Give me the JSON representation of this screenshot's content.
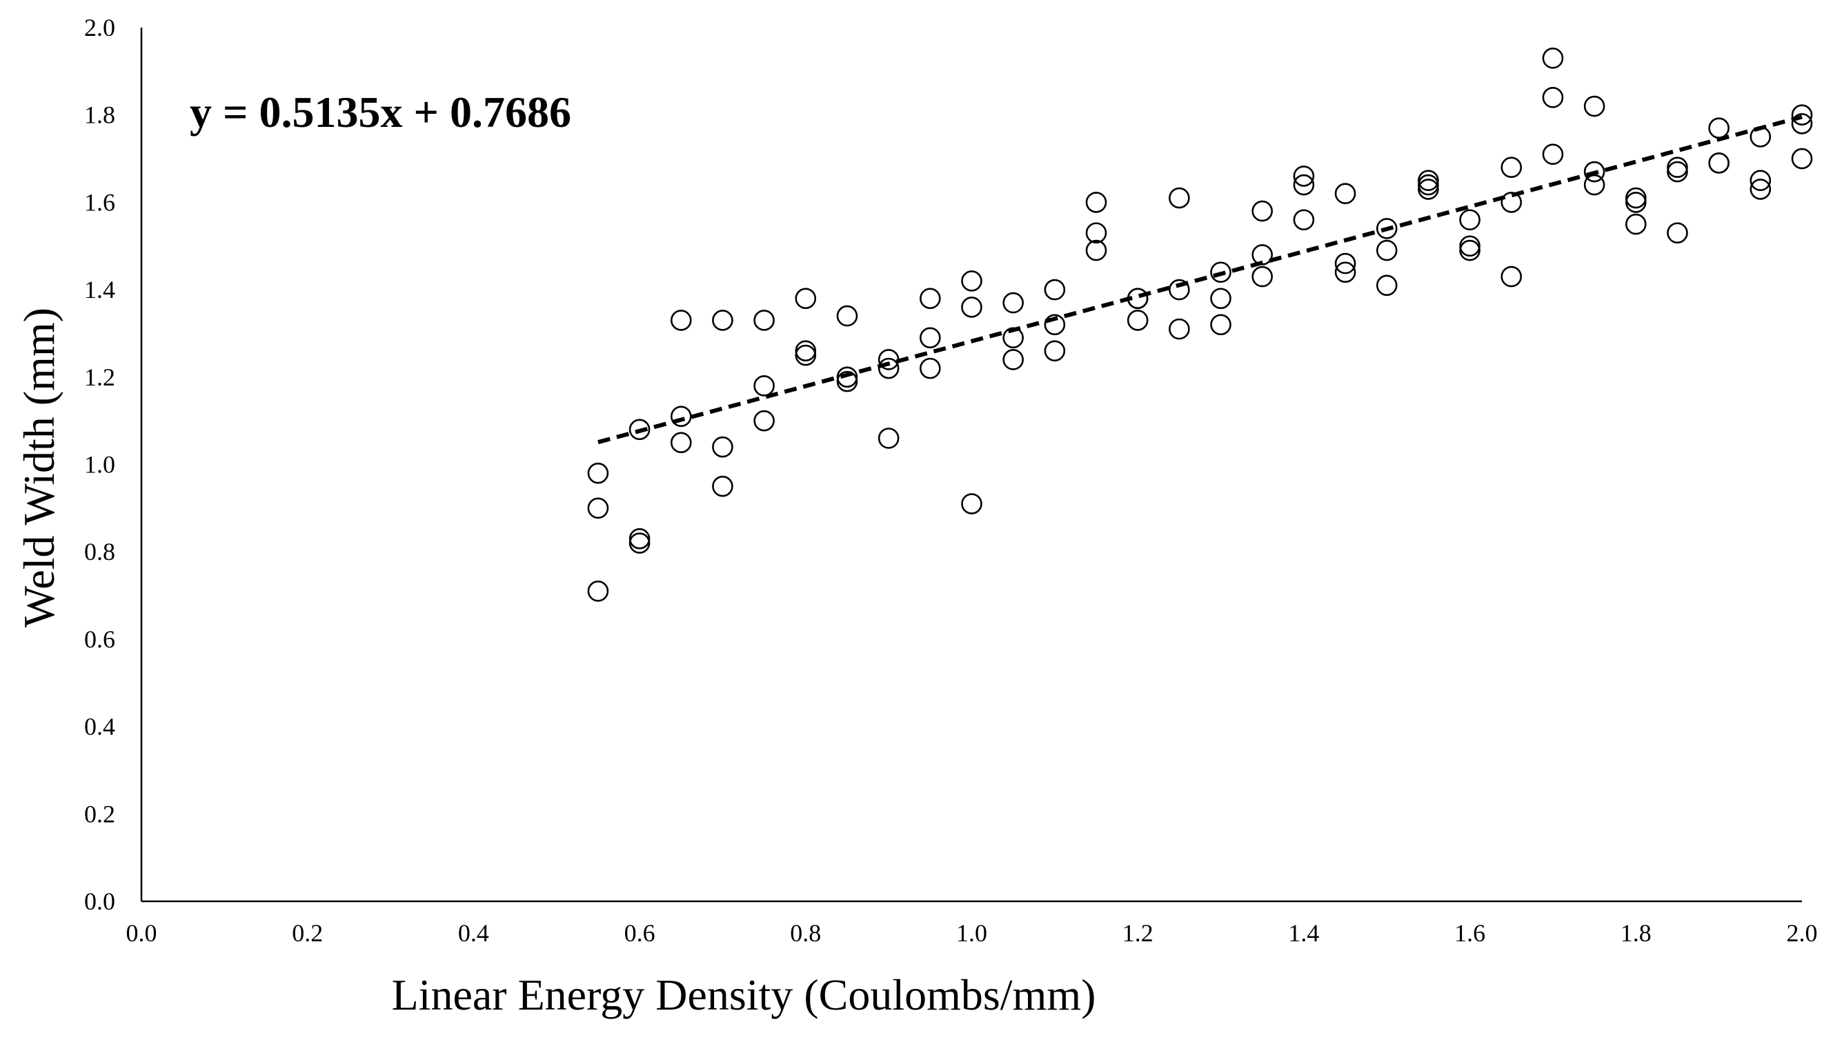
{
  "chart_data": {
    "type": "scatter",
    "title": "",
    "xlabel": "Linear Energy Density (Coulombs/mm)",
    "ylabel": "Weld Width (mm)",
    "xlim": [
      0.0,
      2.0
    ],
    "ylim": [
      0.0,
      2.0
    ],
    "x_ticks": [
      "0.0",
      "0.2",
      "0.4",
      "0.6",
      "0.8",
      "1.0",
      "1.2",
      "1.4",
      "1.6",
      "1.8",
      "2.0"
    ],
    "y_ticks": [
      "0.0",
      "0.2",
      "0.4",
      "0.6",
      "0.8",
      "1.0",
      "1.2",
      "1.4",
      "1.6",
      "1.8",
      "2.0"
    ],
    "grid": false,
    "annotation": "y = 0.5135x + 0.7686",
    "trendline": {
      "slope": 0.5135,
      "intercept": 0.7686,
      "x_range": [
        0.55,
        2.0
      ],
      "style": "dashed"
    },
    "series": [
      {
        "name": "Weld Width",
        "marker": "open-circle",
        "points": [
          [
            0.55,
            0.98
          ],
          [
            0.55,
            0.9
          ],
          [
            0.55,
            0.71
          ],
          [
            0.6,
            1.08
          ],
          [
            0.6,
            0.83
          ],
          [
            0.6,
            0.82
          ],
          [
            0.65,
            1.33
          ],
          [
            0.65,
            1.11
          ],
          [
            0.65,
            1.05
          ],
          [
            0.7,
            1.33
          ],
          [
            0.7,
            1.04
          ],
          [
            0.7,
            0.95
          ],
          [
            0.75,
            1.33
          ],
          [
            0.75,
            1.18
          ],
          [
            0.75,
            1.1
          ],
          [
            0.8,
            1.38
          ],
          [
            0.8,
            1.26
          ],
          [
            0.8,
            1.25
          ],
          [
            0.85,
            1.34
          ],
          [
            0.85,
            1.2
          ],
          [
            0.85,
            1.19
          ],
          [
            0.9,
            1.24
          ],
          [
            0.9,
            1.22
          ],
          [
            0.9,
            1.06
          ],
          [
            0.95,
            1.38
          ],
          [
            0.95,
            1.29
          ],
          [
            0.95,
            1.22
          ],
          [
            1.0,
            1.42
          ],
          [
            1.0,
            1.36
          ],
          [
            1.0,
            0.91
          ],
          [
            1.05,
            1.37
          ],
          [
            1.05,
            1.29
          ],
          [
            1.05,
            1.24
          ],
          [
            1.1,
            1.4
          ],
          [
            1.1,
            1.32
          ],
          [
            1.1,
            1.26
          ],
          [
            1.15,
            1.6
          ],
          [
            1.15,
            1.53
          ],
          [
            1.15,
            1.49
          ],
          [
            1.2,
            1.38
          ],
          [
            1.2,
            1.38
          ],
          [
            1.2,
            1.33
          ],
          [
            1.25,
            1.61
          ],
          [
            1.25,
            1.4
          ],
          [
            1.25,
            1.31
          ],
          [
            1.3,
            1.44
          ],
          [
            1.3,
            1.38
          ],
          [
            1.3,
            1.32
          ],
          [
            1.35,
            1.58
          ],
          [
            1.35,
            1.48
          ],
          [
            1.35,
            1.43
          ],
          [
            1.4,
            1.66
          ],
          [
            1.4,
            1.64
          ],
          [
            1.4,
            1.56
          ],
          [
            1.45,
            1.62
          ],
          [
            1.45,
            1.46
          ],
          [
            1.45,
            1.44
          ],
          [
            1.5,
            1.54
          ],
          [
            1.5,
            1.49
          ],
          [
            1.5,
            1.41
          ],
          [
            1.55,
            1.65
          ],
          [
            1.55,
            1.64
          ],
          [
            1.55,
            1.63
          ],
          [
            1.6,
            1.56
          ],
          [
            1.6,
            1.5
          ],
          [
            1.6,
            1.49
          ],
          [
            1.65,
            1.68
          ],
          [
            1.65,
            1.6
          ],
          [
            1.65,
            1.43
          ],
          [
            1.7,
            1.93
          ],
          [
            1.7,
            1.84
          ],
          [
            1.7,
            1.71
          ],
          [
            1.75,
            1.82
          ],
          [
            1.75,
            1.67
          ],
          [
            1.75,
            1.64
          ],
          [
            1.8,
            1.61
          ],
          [
            1.8,
            1.6
          ],
          [
            1.8,
            1.55
          ],
          [
            1.85,
            1.68
          ],
          [
            1.85,
            1.67
          ],
          [
            1.85,
            1.53
          ],
          [
            1.9,
            1.77
          ],
          [
            1.9,
            1.69
          ],
          [
            1.9,
            1.69
          ],
          [
            1.95,
            1.75
          ],
          [
            1.95,
            1.65
          ],
          [
            1.95,
            1.63
          ],
          [
            2.0,
            1.8
          ],
          [
            2.0,
            1.78
          ],
          [
            2.0,
            1.7
          ]
        ]
      }
    ]
  }
}
